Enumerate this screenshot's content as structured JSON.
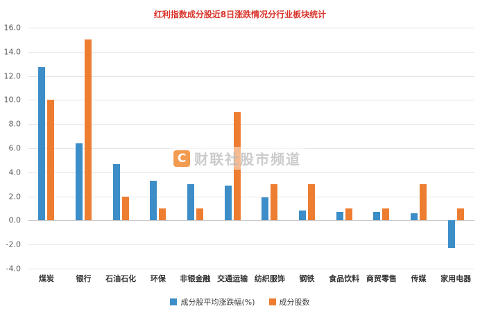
{
  "title": "红利指数成分股近8日涨跌情况分行业板块统计",
  "watermark": {
    "logo": "C",
    "text": "财联社股市频道"
  },
  "colors": {
    "title": "#d9342b",
    "series_avg_change": "#3c8dc8",
    "series_stock_count": "#ed7d31",
    "axis_text": "#595959",
    "gridline": "#e6e6e6"
  },
  "legend": [
    "成分股平均涨跌幅(%)",
    "成分股数"
  ],
  "chart_data": {
    "type": "bar",
    "title": "红利指数成分股近8日涨跌情况分行业板块统计",
    "categories": [
      "煤炭",
      "银行",
      "石油石化",
      "环保",
      "非银金融",
      "交通运输",
      "纺织服饰",
      "钢铁",
      "食品饮料",
      "商贸零售",
      "传媒",
      "家用电器"
    ],
    "series": [
      {
        "name": "成分股平均涨跌幅(%)",
        "color": "#3c8dc8",
        "values": [
          12.7,
          6.4,
          4.7,
          3.3,
          3.0,
          2.9,
          1.9,
          0.8,
          0.7,
          0.7,
          0.6,
          -2.3
        ]
      },
      {
        "name": "成分股数",
        "color": "#ed7d31",
        "values": [
          10,
          15,
          2,
          1,
          1,
          9,
          3,
          3,
          1,
          1,
          3,
          1
        ]
      }
    ],
    "xlabel": "",
    "ylabel": "",
    "ylim": [
      -4,
      16
    ],
    "ytick_step": 2,
    "ytick_format": "one_decimal",
    "grid": true,
    "legend_position": "bottom"
  }
}
